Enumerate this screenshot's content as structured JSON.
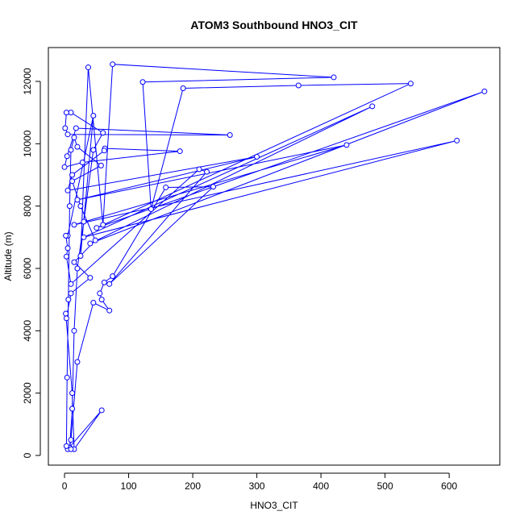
{
  "chart_data": {
    "type": "line",
    "title": "ATOM3 Southbound HNO3_CIT",
    "x_label": "HNO3_CIT",
    "y_label": "Altitude (m)",
    "color": "#0000ff",
    "markers": "circle",
    "x": [
      5,
      8,
      12,
      15,
      20,
      30,
      45,
      60,
      10,
      3,
      1,
      5,
      258,
      18,
      4,
      0,
      28,
      180,
      63,
      62,
      12,
      5,
      300,
      20,
      440,
      15,
      612,
      30,
      480,
      40,
      655,
      50,
      540,
      365,
      185,
      135,
      122,
      420,
      75,
      60,
      37,
      25,
      45,
      5,
      2,
      5,
      3,
      10,
      210,
      222,
      70,
      232,
      158,
      75,
      62,
      55,
      58,
      70,
      45,
      20,
      10,
      8,
      5,
      58,
      15,
      12,
      2,
      3,
      10,
      40,
      15,
      48,
      25,
      12,
      57,
      20,
      15,
      10,
      8,
      6,
      4,
      3,
      10
    ],
    "values": [
      250,
      220,
      1500,
      4000,
      6000,
      7500,
      9800,
      10350,
      11000,
      11000,
      10500,
      10300,
      10280,
      10500,
      9600,
      9250,
      9400,
      9760,
      9850,
      9780,
      9000,
      8500,
      9580,
      8200,
      9960,
      7400,
      10100,
      7000,
      11200,
      6800,
      11680,
      7300,
      11930,
      11870,
      11780,
      7900,
      11980,
      12130,
      12550,
      7400,
      12450,
      6400,
      10900,
      7050,
      7050,
      6650,
      6380,
      5500,
      9180,
      9100,
      5500,
      8620,
      8600,
      5750,
      5550,
      5200,
      5000,
      4650,
      4900,
      3000,
      500,
      250,
      200,
      1450,
      200,
      2000,
      4550,
      4400,
      5200,
      5700,
      6200,
      6900,
      8000,
      8800,
      9300,
      9900,
      10200,
      9800,
      8000,
      5000,
      2500,
      300,
      200
    ],
    "xlim": [
      -25.2,
      679
    ],
    "ylim": [
      -310,
      13085
    ],
    "xticks": [
      0,
      100,
      200,
      300,
      400,
      500,
      600
    ],
    "yticks": [
      0,
      2000,
      4000,
      6000,
      8000,
      10000,
      12000
    ]
  }
}
